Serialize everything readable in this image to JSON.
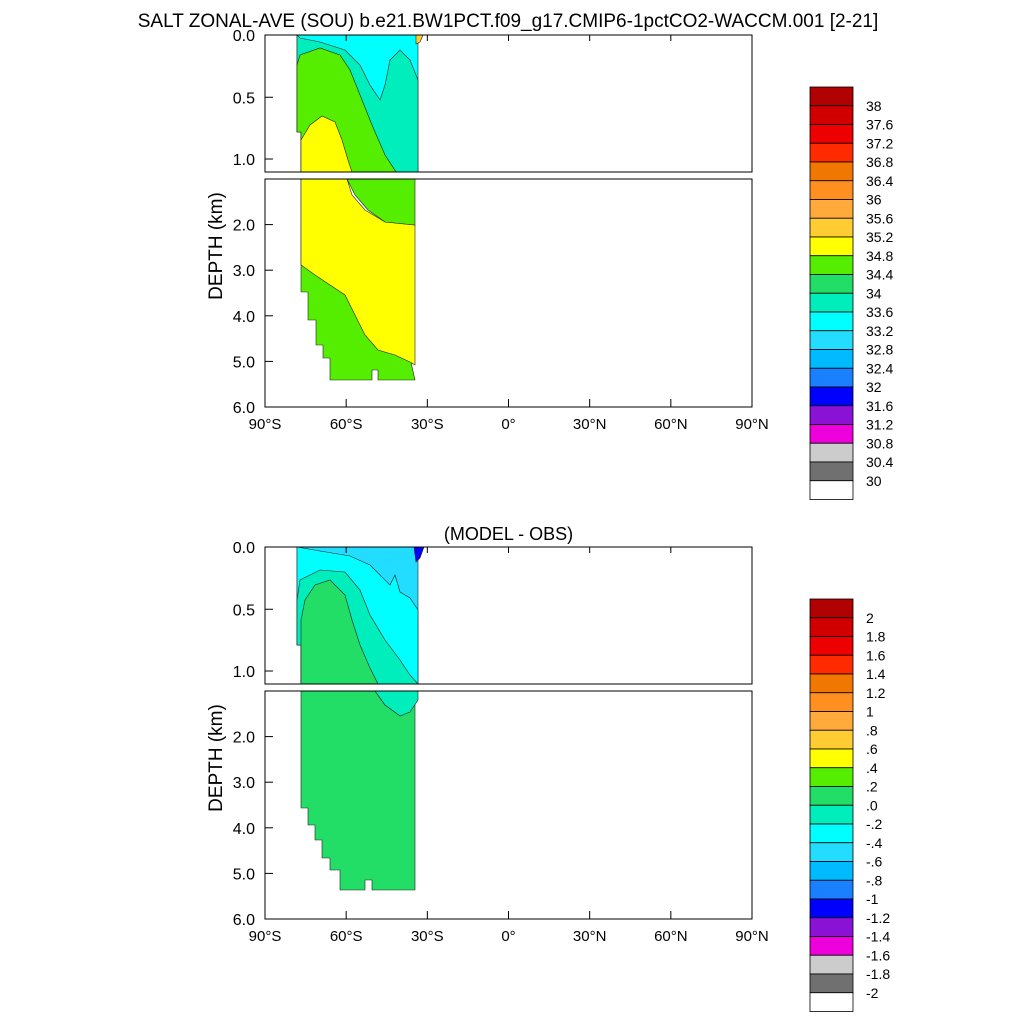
{
  "figure": {
    "title": "SALT ZONAL-AVE (SOU) b.e21.BW1PCT.f09_g17.CMIP6-1pctCO2-WACCM.001 [2-21]"
  },
  "chart_data": [
    {
      "type": "heatmap",
      "title": "",
      "xlabel": "",
      "ylabel": "DEPTH (km)",
      "x_ticks": [
        "90°S",
        "60°S",
        "30°S",
        "0°",
        "30°N",
        "60°N",
        "90°N"
      ],
      "x_tick_values": [
        -90,
        -60,
        -30,
        0,
        30,
        60,
        90
      ],
      "xlim": [
        -90,
        90
      ],
      "y_ticks_upper": [
        "0.0",
        "0.5",
        "1.0"
      ],
      "y_ticks_lower": [
        "2.0",
        "3.0",
        "4.0",
        "5.0",
        "6.0"
      ],
      "ylim": [
        6.0,
        0.0
      ],
      "depth_axis_break_km": 1.0,
      "colorbar_labels": [
        "38",
        "37.6",
        "37.2",
        "36.8",
        "36.4",
        "36",
        "35.6",
        "35.2",
        "34.8",
        "34.4",
        "34",
        "33.6",
        "33.2",
        "32.8",
        "32.4",
        "32",
        "31.6",
        "31.2",
        "30.8",
        "30.4",
        "30"
      ],
      "colorbar_colors": [
        "#b00000",
        "#d00000",
        "#ee0000",
        "#ff2a00",
        "#f07800",
        "#ff9020",
        "#ffaa3a",
        "#ffcc33",
        "#ffff00",
        "#55ee00",
        "#22dd66",
        "#00eebb",
        "#00ffff",
        "#22ddff",
        "#00bbff",
        "#1a80ff",
        "#0000ff",
        "#8a12d6",
        "#ee00dd",
        "#cccccc",
        "#707070",
        "#ffffff"
      ]
    },
    {
      "type": "heatmap",
      "title": "(MODEL - OBS)",
      "xlabel": "",
      "ylabel": "DEPTH (km)",
      "x_ticks": [
        "90°S",
        "60°S",
        "30°S",
        "0°",
        "30°N",
        "60°N",
        "90°N"
      ],
      "x_tick_values": [
        -90,
        -60,
        -30,
        0,
        30,
        60,
        90
      ],
      "xlim": [
        -90,
        90
      ],
      "y_ticks_upper": [
        "0.0",
        "0.5",
        "1.0"
      ],
      "y_ticks_lower": [
        "2.0",
        "3.0",
        "4.0",
        "5.0",
        "6.0"
      ],
      "ylim": [
        6.0,
        0.0
      ],
      "depth_axis_break_km": 1.0,
      "colorbar_labels": [
        "2",
        "1.8",
        "1.6",
        "1.4",
        "1.2",
        "1",
        ".8",
        ".6",
        ".4",
        ".2",
        ".0",
        "-.2",
        "-.4",
        "-.6",
        "-.8",
        "-1",
        "-1.2",
        "-1.4",
        "-1.6",
        "-1.8",
        "-2"
      ],
      "colorbar_colors": [
        "#b00000",
        "#d00000",
        "#ee0000",
        "#ff2a00",
        "#f07800",
        "#ff9020",
        "#ffaa3a",
        "#ffcc33",
        "#ffff00",
        "#55ee00",
        "#22dd66",
        "#00eebb",
        "#00ffff",
        "#22ddff",
        "#00bbff",
        "#1a80ff",
        "#0000ff",
        "#8a12d6",
        "#ee00dd",
        "#cccccc",
        "#707070",
        "#ffffff"
      ]
    }
  ]
}
